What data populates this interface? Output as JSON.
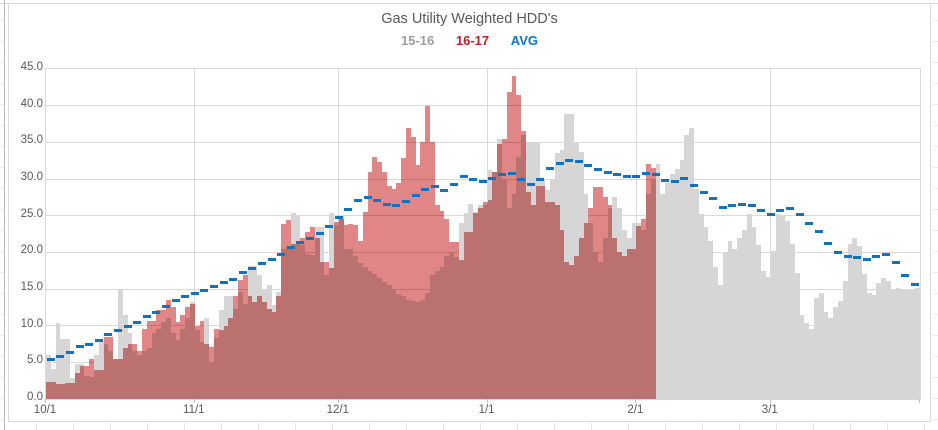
{
  "chart_data": {
    "type": "bar",
    "title": "Gas Utility Weighted HDD's",
    "title_color": "#595959",
    "legend_position": "top",
    "gridlines": true,
    "y_axis": {
      "min": 0,
      "max": 45,
      "step": 5,
      "tick_labels": [
        "0.0",
        "5.0",
        "10.0",
        "15.0",
        "20.0",
        "25.0",
        "30.0",
        "35.0",
        "40.0",
        "45.0"
      ]
    },
    "x_axis": {
      "total_days": 182,
      "ticks": [
        {
          "label": "10/1",
          "day": 0
        },
        {
          "label": "11/1",
          "day": 31
        },
        {
          "label": "12/1",
          "day": 61
        },
        {
          "label": "1/1",
          "day": 92
        },
        {
          "label": "2/1",
          "day": 123
        },
        {
          "label": "3/1",
          "day": 151
        }
      ]
    },
    "series": [
      {
        "name": "15-16",
        "type": "bar",
        "color": "#d6d6d6",
        "legend_color": "#9e9e9e",
        "values": [
          6.0,
          4.1,
          10.3,
          8.2,
          8.2,
          2.8,
          4.8,
          4.8,
          3.2,
          3.0,
          6.0,
          8.0,
          7.5,
          6.5,
          5.5,
          15.0,
          11.5,
          9.0,
          6.5,
          6.0,
          6.5,
          7.0,
          9.0,
          9.5,
          10.5,
          11.0,
          9.0,
          8.0,
          9.5,
          11.0,
          13.2,
          9.4,
          7.8,
          11.0,
          5.0,
          8.3,
          12.1,
          14.1,
          14.1,
          12.3,
          14.6,
          13.0,
          18.2,
          18.2,
          16.9,
          15.0,
          15.5,
          12.8,
          14.6,
          20.5,
          20.9,
          25.3,
          25.0,
          21.0,
          19.8,
          19.6,
          23.5,
          23.5,
          16.9,
          25.3,
          23.7,
          25.0,
          20.5,
          20.5,
          19.5,
          18.5,
          18.0,
          17.5,
          17.0,
          16.5,
          16.0,
          15.5,
          15.0,
          14.3,
          14.0,
          13.5,
          13.3,
          13.2,
          13.5,
          14.5,
          16.9,
          17.5,
          18.0,
          19.5,
          20.0,
          19.4,
          24.0,
          25.3,
          26.6,
          25.5,
          26.4,
          26.4,
          31.2,
          31.0,
          35.5,
          30.0,
          26.0,
          28.0,
          33.0,
          36.0,
          35.0,
          34.9,
          34.9,
          30.0,
          28.5,
          30.0,
          33.5,
          34.0,
          38.8,
          38.8,
          34.9,
          33.7,
          28.0,
          24.0,
          20.0,
          18.7,
          22.0,
          26.0,
          27.5,
          26.0,
          23.0,
          22.0,
          24.0,
          24.0,
          23.0,
          28.0,
          30.0,
          32.1,
          28.0,
          29.5,
          30.7,
          31.4,
          32.6,
          36.0,
          36.9,
          28.7,
          25.2,
          23.4,
          21.5,
          18.0,
          15.6,
          20.0,
          21.5,
          20.5,
          22.0,
          23.0,
          25.2,
          23.5,
          21.0,
          17.5,
          16.6,
          20.2,
          25.2,
          25.0,
          24.3,
          21.1,
          17.2,
          11.5,
          10.3,
          9.6,
          13.8,
          14.4,
          11.9,
          11.0,
          12.6,
          13.3,
          16.1,
          21.1,
          22.0,
          20.9,
          17.0,
          14.4,
          14.2,
          15.8,
          16.5,
          16.1,
          14.9,
          15.1,
          14.9,
          14.9,
          15.0,
          15.2
        ]
      },
      {
        "name": "16-17",
        "type": "bar",
        "color": "#e08686",
        "overlap_color": "#b66d72",
        "legend_color": "#bb1f24",
        "values": [
          2.3,
          2.3,
          2.0,
          2.0,
          2.2,
          2.2,
          3.5,
          4.5,
          4.5,
          5.5,
          4.0,
          4.0,
          8.5,
          8.5,
          5.5,
          5.5,
          7.0,
          7.5,
          7.5,
          6.5,
          9.5,
          10.7,
          10.7,
          12.1,
          12.1,
          13.5,
          12.5,
          10.5,
          11.5,
          12.5,
          13.0,
          10.0,
          10.7,
          7.5,
          7.1,
          9.6,
          9.4,
          10.0,
          11.0,
          14.1,
          16.2,
          16.9,
          14.1,
          13.2,
          14.1,
          13.2,
          12.3,
          11.9,
          14.1,
          23.9,
          24.4,
          21.2,
          21.2,
          21.9,
          22.8,
          23.5,
          21.9,
          18.7,
          18.7,
          17.8,
          24.1,
          24.6,
          23.7,
          23.9,
          23.7,
          21.5,
          25.5,
          31.0,
          33.0,
          32.3,
          31.0,
          29.1,
          28.6,
          29.4,
          32.8,
          36.9,
          35.7,
          31.9,
          35.0,
          40.0,
          35.0,
          26.4,
          25.7,
          24.6,
          21.4,
          21.4,
          18.9,
          22.8,
          22.8,
          25.3,
          26.0,
          26.9,
          27.1,
          31.0,
          34.8,
          35.5,
          41.8,
          44.0,
          41.5,
          36.5,
          28.2,
          26.4,
          29.1,
          29.1,
          26.9,
          26.9,
          26.4,
          23.0,
          18.7,
          18.3,
          19.5,
          22.0,
          24.0,
          26.0,
          28.9,
          28.9,
          27.5,
          26.4,
          22.0,
          20.0,
          19.5,
          20.4,
          20.4,
          23.6,
          24.5,
          32.1,
          31.5
        ]
      },
      {
        "name": "AVG",
        "type": "dashed-line",
        "color": "#1272bb",
        "legend_color": "#0f74c2",
        "values": [
          5.3,
          5.5,
          5.7,
          6.0,
          6.2,
          6.5,
          7.0,
          7.2,
          7.4,
          7.6,
          7.8,
          8.2,
          8.6,
          9.0,
          9.3,
          9.5,
          9.8,
          10.0,
          10.3,
          10.7,
          11.0,
          11.4,
          11.7,
          12.0,
          12.4,
          12.8,
          13.2,
          13.6,
          13.9,
          14.1,
          14.3,
          14.5,
          14.7,
          15.0,
          15.2,
          15.5,
          15.7,
          16.0,
          16.2,
          16.5,
          17.0,
          17.4,
          17.7,
          18.0,
          18.3,
          18.6,
          18.9,
          19.2,
          19.5,
          20.0,
          20.4,
          20.8,
          21.2,
          21.5,
          21.8,
          22.1,
          22.4,
          22.8,
          23.2,
          23.8,
          24.4,
          25.0,
          25.6,
          26.2,
          26.8,
          27.3,
          27.5,
          27.4,
          27.2,
          26.9,
          26.6,
          26.4,
          26.3,
          26.5,
          26.8,
          27.2,
          27.6,
          28.0,
          28.4,
          28.8,
          29.1,
          28.9,
          28.6,
          28.4,
          29.0,
          29.6,
          30.2,
          30.5,
          30.2,
          29.8,
          29.5,
          29.8,
          30.0,
          30.2,
          30.5,
          30.8,
          31.0,
          30.6,
          30.2,
          29.8,
          29.4,
          29.0,
          29.5,
          30.3,
          31.2,
          31.7,
          32.0,
          32.2,
          32.4,
          32.6,
          32.5,
          32.3,
          32.0,
          31.8,
          31.5,
          31.2,
          31.0,
          30.8,
          30.6,
          30.5,
          30.4,
          30.3,
          30.3,
          30.4,
          30.6,
          30.8,
          31.0,
          30.3,
          30.0,
          29.6,
          29.4,
          29.8,
          30.0,
          30.2,
          29.5,
          28.8,
          28.4,
          28.0,
          27.5,
          27.1,
          26.5,
          25.7,
          26.1,
          26.8,
          26.6,
          26.4,
          26.3,
          26.5,
          26.4,
          25.0,
          24.5,
          25.7,
          25.5,
          26.0,
          26.5,
          25.5,
          25.3,
          25.0,
          24.3,
          23.6,
          23.2,
          22.5,
          21.6,
          20.9,
          20.2,
          19.7,
          19.5,
          19.4,
          19.3,
          19.2,
          19.1,
          19.0,
          19.3,
          19.6,
          19.8,
          19.5,
          19.0,
          18.3,
          17.3,
          16.5,
          15.8,
          15.5
        ]
      }
    ]
  }
}
